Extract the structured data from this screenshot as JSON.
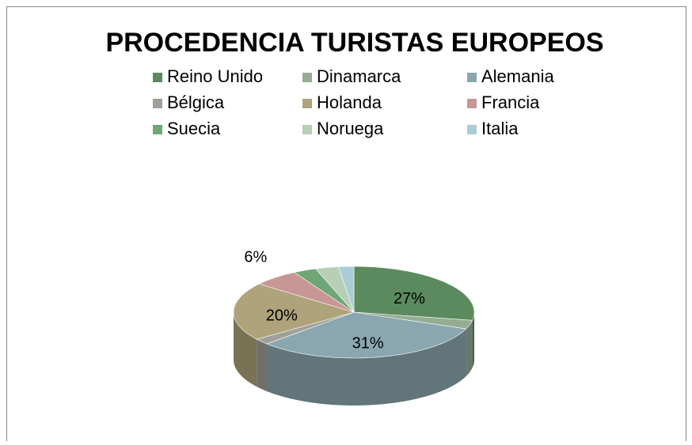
{
  "chart_data": {
    "type": "pie",
    "title": "PROCEDENCIA TURISTAS EUROPEOS",
    "categories": [
      "Reino Unido",
      "Dinamarca",
      "Alemania",
      "Bélgica",
      "Holanda",
      "Francia",
      "Suecia",
      "Noruega",
      "Italia"
    ],
    "values": [
      27,
      3,
      31,
      2,
      20,
      6,
      3,
      3,
      2
    ],
    "value_labels": [
      "27%",
      null,
      "31%",
      null,
      "20%",
      "6%",
      null,
      null,
      null
    ],
    "colors": [
      "#5b8a5e",
      "#94ad93",
      "#8aa7b0",
      "#a09f98",
      "#aea37a",
      "#c99696",
      "#6fa676",
      "#b7cfb6",
      "#a9cdd6"
    ],
    "legend": "top"
  }
}
